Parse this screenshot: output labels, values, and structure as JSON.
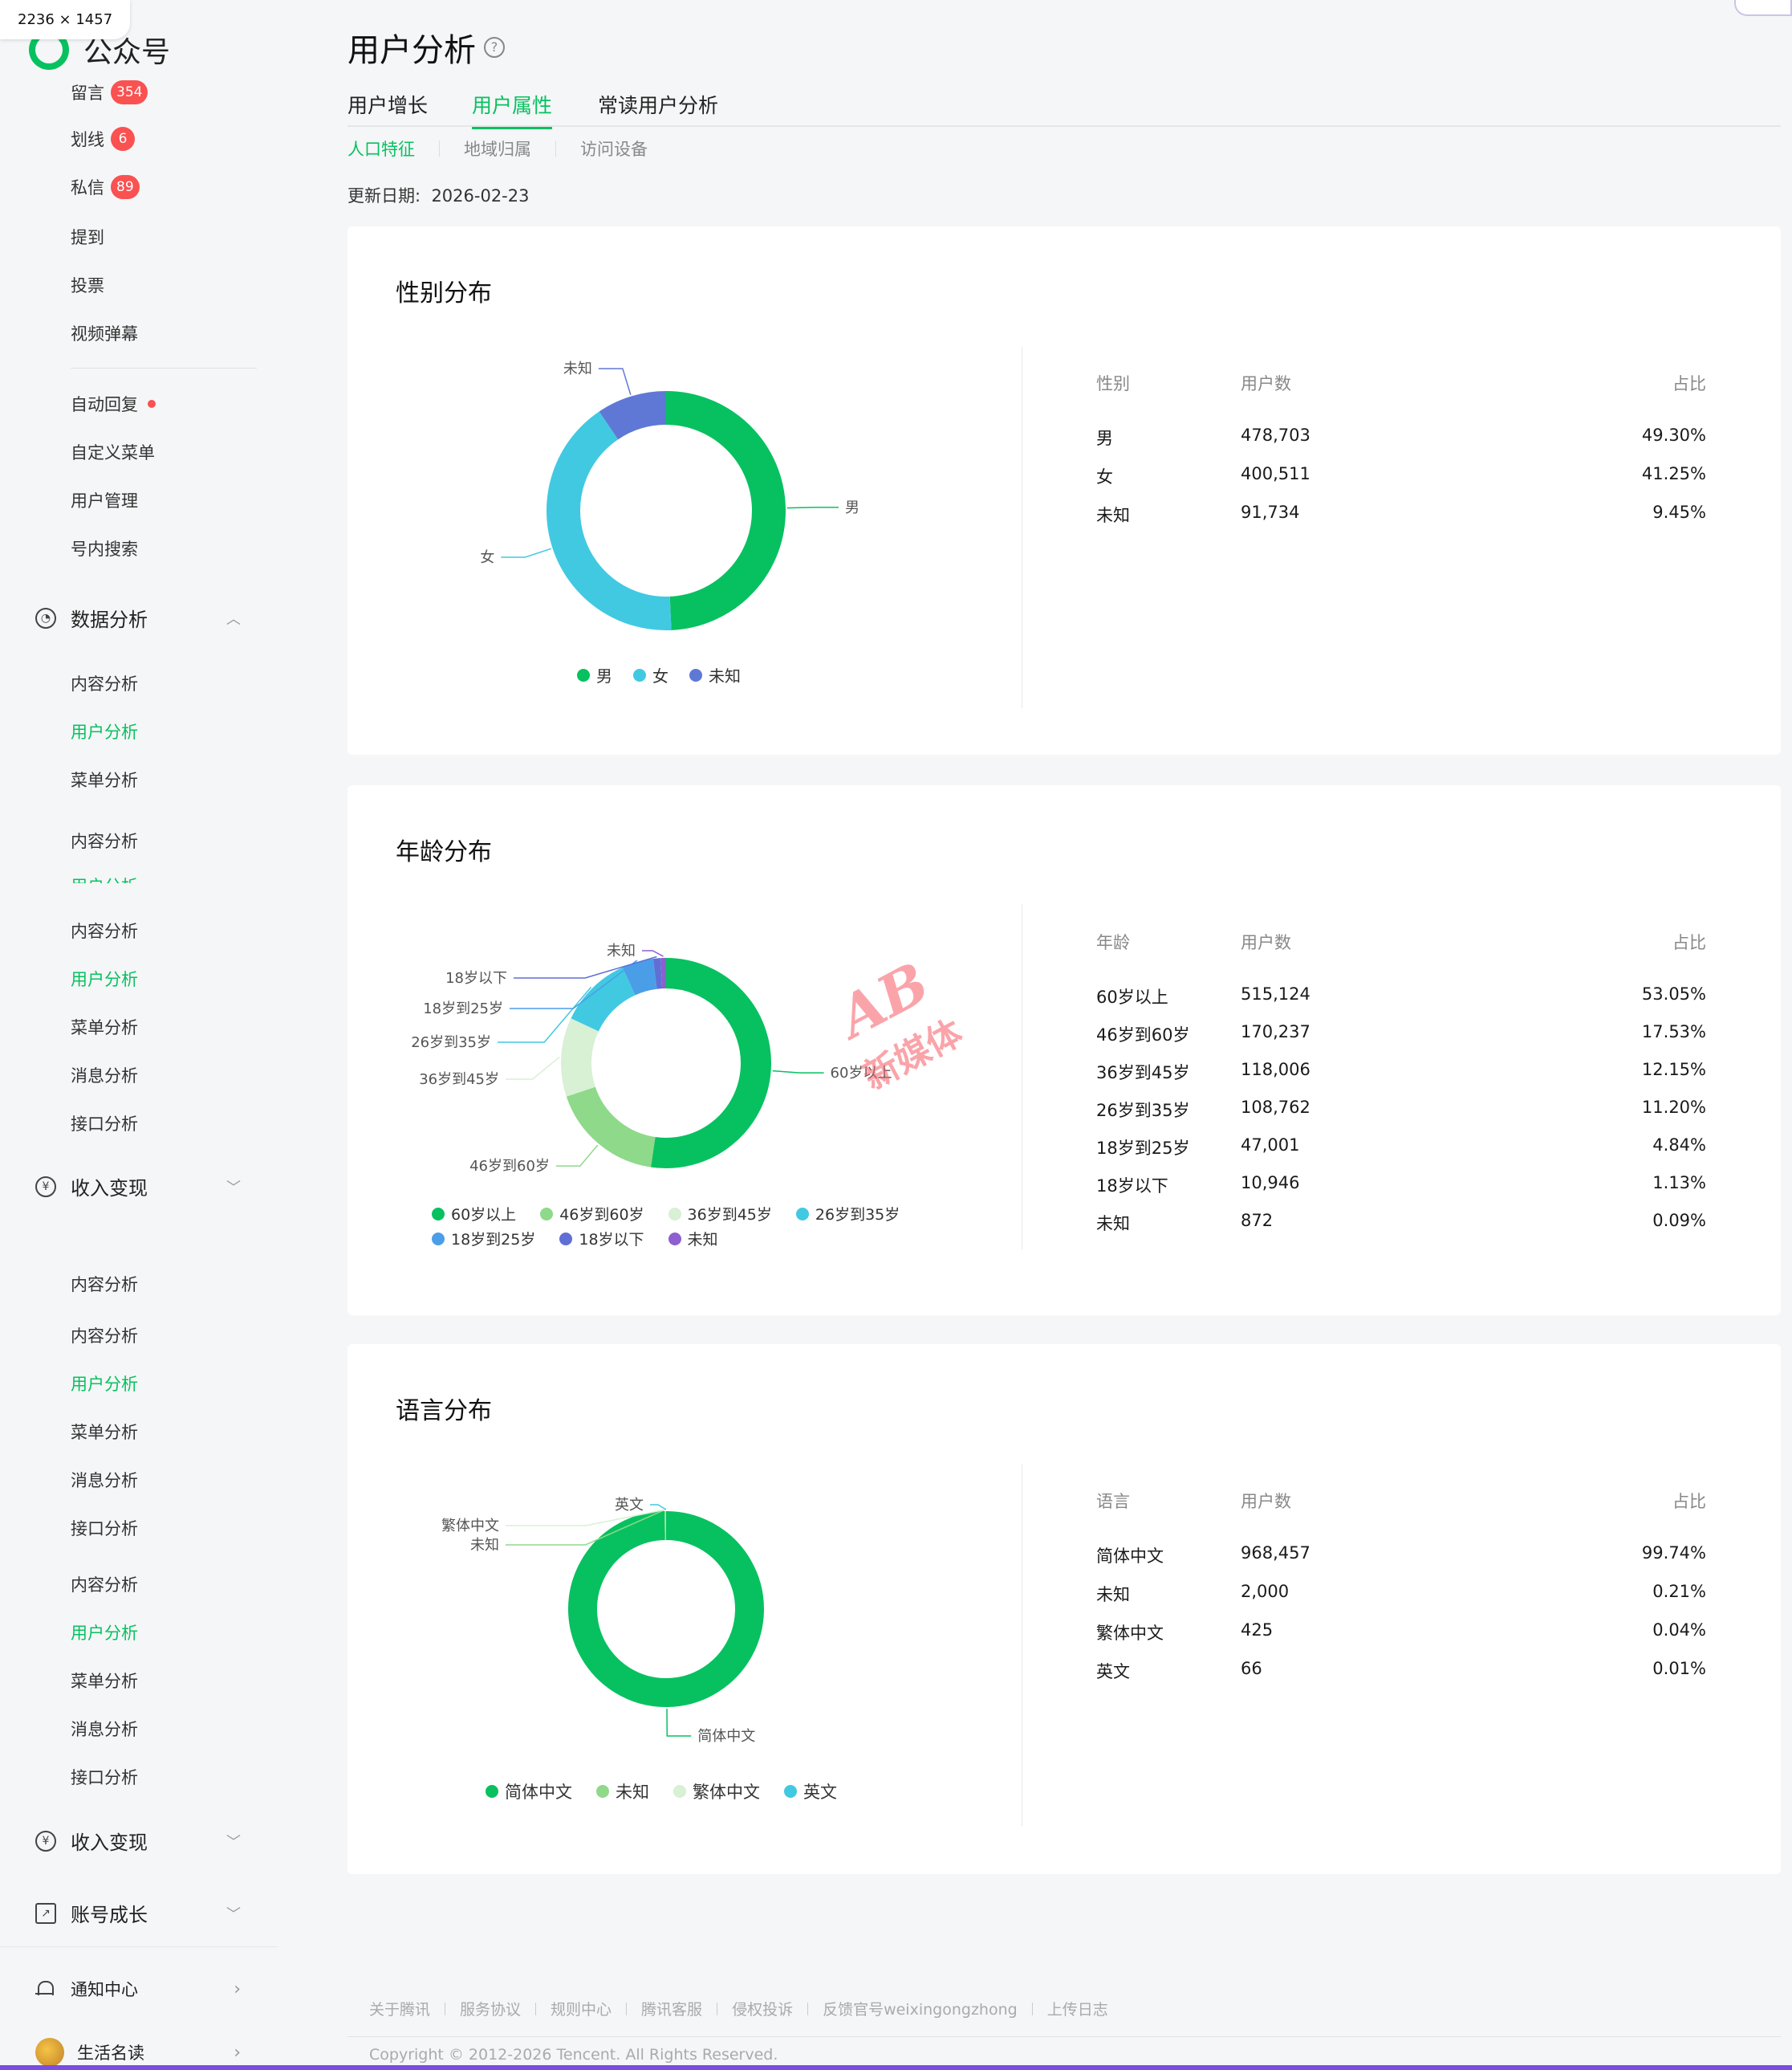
{
  "window": {
    "size_label": "2236 × 1457"
  },
  "app": {
    "name": "公众号"
  },
  "sidebar": {
    "top_items": [
      {
        "label": "留言",
        "badge": "354"
      },
      {
        "label": "划线",
        "badge": "6"
      },
      {
        "label": "私信",
        "badge": "89"
      },
      {
        "label": "提到"
      },
      {
        "label": "投票"
      },
      {
        "label": "视频弹幕"
      }
    ],
    "tool_items": [
      {
        "label": "自动回复",
        "dot": true
      },
      {
        "label": "自定义菜单"
      },
      {
        "label": "用户管理"
      },
      {
        "label": "号内搜索"
      }
    ],
    "section_data": {
      "label": "数据分析"
    },
    "data_items": [
      "内容分析",
      "用户分析",
      "菜单分析",
      "内容分析",
      "用户分析",
      "内容分析",
      "用户分析",
      "菜单分析",
      "消息分析",
      "接口分析"
    ],
    "section_income": {
      "label": "收入变现"
    },
    "income_items": [
      "内容分析",
      "内容分析",
      "用户分析",
      "菜单分析",
      "消息分析",
      "接口分析",
      "内容分析",
      "用户分析",
      "菜单分析",
      "消息分析",
      "接口分析"
    ],
    "section_income2": {
      "label": "收入变现"
    },
    "section_growth": {
      "label": "账号成长"
    },
    "notify": {
      "label": "通知中心"
    },
    "profile": {
      "label": "生活名读"
    }
  },
  "header": {
    "title": "用户分析",
    "help": "?",
    "tabs": [
      "用户增长",
      "用户属性",
      "常读用户分析"
    ],
    "active_tab": 1,
    "subtabs": [
      "人口特征",
      "地域归属",
      "访问设备"
    ],
    "active_subtab": 0,
    "update_label": "更新日期:",
    "update_date": "2026-02-23"
  },
  "gender": {
    "title": "性别分布",
    "columns": [
      "性别",
      "用户数",
      "占比"
    ],
    "rows": [
      {
        "label": "男",
        "users": "478,703",
        "pct": "49.30%"
      },
      {
        "label": "女",
        "users": "400,511",
        "pct": "41.25%"
      },
      {
        "label": "未知",
        "users": "91,734",
        "pct": "9.45%"
      }
    ]
  },
  "age": {
    "title": "年龄分布",
    "columns": [
      "年龄",
      "用户数",
      "占比"
    ],
    "rows": [
      {
        "label": "60岁以上",
        "users": "515,124",
        "pct": "53.05%"
      },
      {
        "label": "46岁到60岁",
        "users": "170,237",
        "pct": "17.53%"
      },
      {
        "label": "36岁到45岁",
        "users": "118,006",
        "pct": "12.15%"
      },
      {
        "label": "26岁到35岁",
        "users": "108,762",
        "pct": "11.20%"
      },
      {
        "label": "18岁到25岁",
        "users": "47,001",
        "pct": "4.84%"
      },
      {
        "label": "18岁以下",
        "users": "10,946",
        "pct": "1.13%"
      },
      {
        "label": "未知",
        "users": "872",
        "pct": "0.09%"
      }
    ]
  },
  "language": {
    "title": "语言分布",
    "columns": [
      "语言",
      "用户数",
      "占比"
    ],
    "rows": [
      {
        "label": "简体中文",
        "users": "968,457",
        "pct": "99.74%"
      },
      {
        "label": "未知",
        "users": "2,000",
        "pct": "0.21%"
      },
      {
        "label": "繁体中文",
        "users": "425",
        "pct": "0.04%"
      },
      {
        "label": "英文",
        "users": "66",
        "pct": "0.01%"
      }
    ]
  },
  "chart_data": [
    {
      "type": "pie",
      "categories": [
        "男",
        "女",
        "未知"
      ],
      "values": [
        49.3,
        41.25,
        9.45
      ],
      "colors": [
        "#07c160",
        "#41c9e2",
        "#5f78d6"
      ],
      "legend": "bottom"
    },
    {
      "type": "pie",
      "categories": [
        "60岁以上",
        "46岁到60岁",
        "36岁到45岁",
        "26岁到35岁",
        "18岁到25岁",
        "18岁以下",
        "未知"
      ],
      "values": [
        53.05,
        17.53,
        12.15,
        11.2,
        4.84,
        1.13,
        0.09
      ],
      "colors": [
        "#07c160",
        "#8fd98a",
        "#d8f0d4",
        "#41c9e2",
        "#4a9ee8",
        "#5f6fd6",
        "#8d5fd0"
      ],
      "legend": "bottom"
    },
    {
      "type": "pie",
      "categories": [
        "简体中文",
        "未知",
        "繁体中文",
        "英文"
      ],
      "values": [
        99.74,
        0.21,
        0.04,
        0.01
      ],
      "colors": [
        "#07c160",
        "#8fd98a",
        "#d8f0d4",
        "#41c9e2"
      ],
      "legend": "bottom"
    }
  ],
  "watermark": {
    "line1": "AB",
    "line2": "新媒体"
  },
  "footer": {
    "links": [
      "关于腾讯",
      "服务协议",
      "规则中心",
      "腾讯客服",
      "侵权投诉",
      "反馈官号weixingongzhong",
      "上传日志"
    ],
    "copyright": "Copyright © 2012-2026 Tencent. All Rights Reserved."
  }
}
